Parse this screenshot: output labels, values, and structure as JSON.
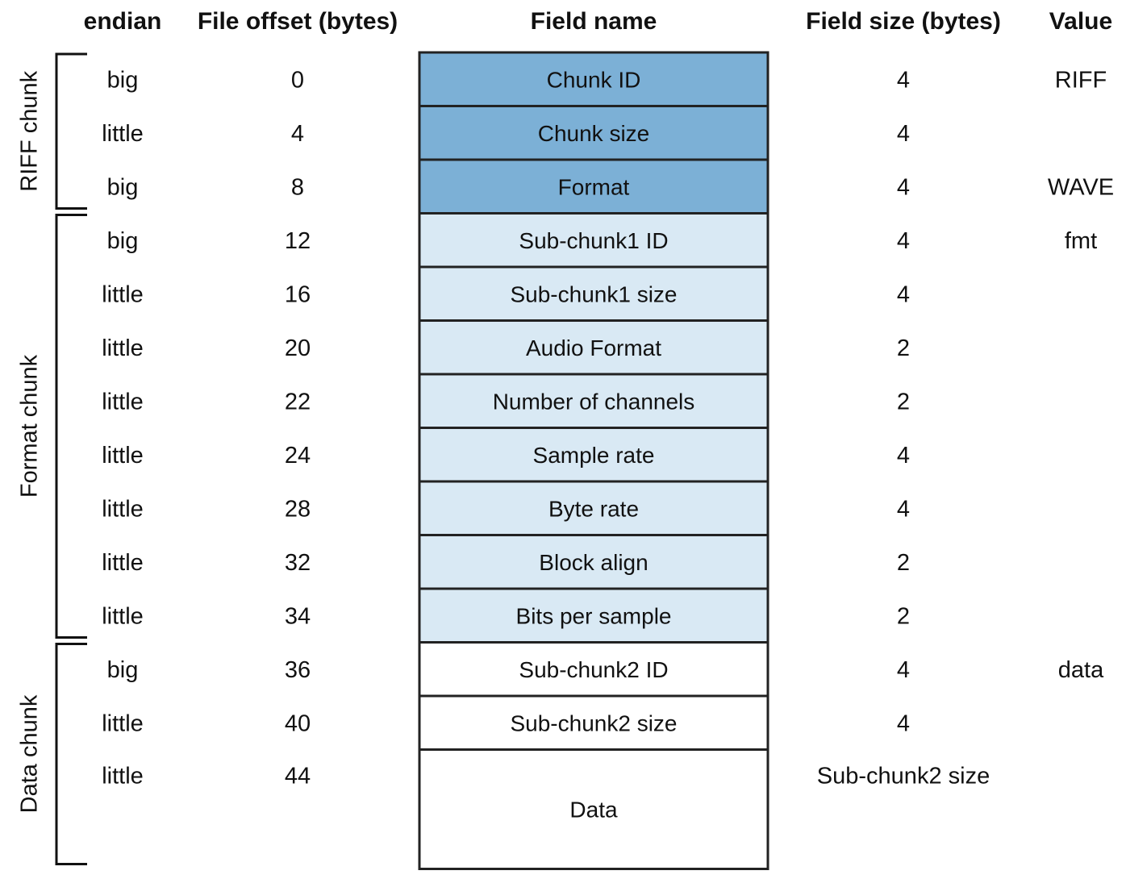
{
  "headers": {
    "endian": "endian",
    "offset": "File offset (bytes)",
    "field": "Field name",
    "size": "Field size (bytes)",
    "value": "Value"
  },
  "colors": {
    "riff": "#7cb0d6",
    "format": "#d9e9f4",
    "data": "#ffffff",
    "stroke": "#222222"
  },
  "groups": [
    {
      "label": "RIFF chunk",
      "first": 0,
      "last": 2
    },
    {
      "label": "Format chunk",
      "first": 3,
      "last": 10
    },
    {
      "label": "Data chunk",
      "first": 11,
      "last": 13
    }
  ],
  "rows": [
    {
      "endian": "big",
      "offset": "0",
      "field": "Chunk ID",
      "size": "4",
      "value": "RIFF",
      "group": "riff"
    },
    {
      "endian": "little",
      "offset": "4",
      "field": "Chunk size",
      "size": "4",
      "value": "",
      "group": "riff"
    },
    {
      "endian": "big",
      "offset": "8",
      "field": "Format",
      "size": "4",
      "value": "WAVE",
      "group": "riff"
    },
    {
      "endian": "big",
      "offset": "12",
      "field": "Sub-chunk1 ID",
      "size": "4",
      "value": "fmt",
      "group": "format"
    },
    {
      "endian": "little",
      "offset": "16",
      "field": "Sub-chunk1 size",
      "size": "4",
      "value": "",
      "group": "format"
    },
    {
      "endian": "little",
      "offset": "20",
      "field": "Audio Format",
      "size": "2",
      "value": "",
      "group": "format"
    },
    {
      "endian": "little",
      "offset": "22",
      "field": "Number of channels",
      "size": "2",
      "value": "",
      "group": "format"
    },
    {
      "endian": "little",
      "offset": "24",
      "field": "Sample rate",
      "size": "4",
      "value": "",
      "group": "format"
    },
    {
      "endian": "little",
      "offset": "28",
      "field": "Byte rate",
      "size": "4",
      "value": "",
      "group": "format"
    },
    {
      "endian": "little",
      "offset": "32",
      "field": "Block align",
      "size": "2",
      "value": "",
      "group": "format"
    },
    {
      "endian": "little",
      "offset": "34",
      "field": "Bits per sample",
      "size": "2",
      "value": "",
      "group": "format"
    },
    {
      "endian": "big",
      "offset": "36",
      "field": "Sub-chunk2 ID",
      "size": "4",
      "value": "data",
      "group": "data"
    },
    {
      "endian": "little",
      "offset": "40",
      "field": "Sub-chunk2 size",
      "size": "4",
      "value": "",
      "group": "data"
    },
    {
      "endian": "little",
      "offset": "44",
      "field": "Data",
      "size": "Sub-chunk2 size",
      "value": "",
      "group": "data",
      "tall": true
    }
  ]
}
